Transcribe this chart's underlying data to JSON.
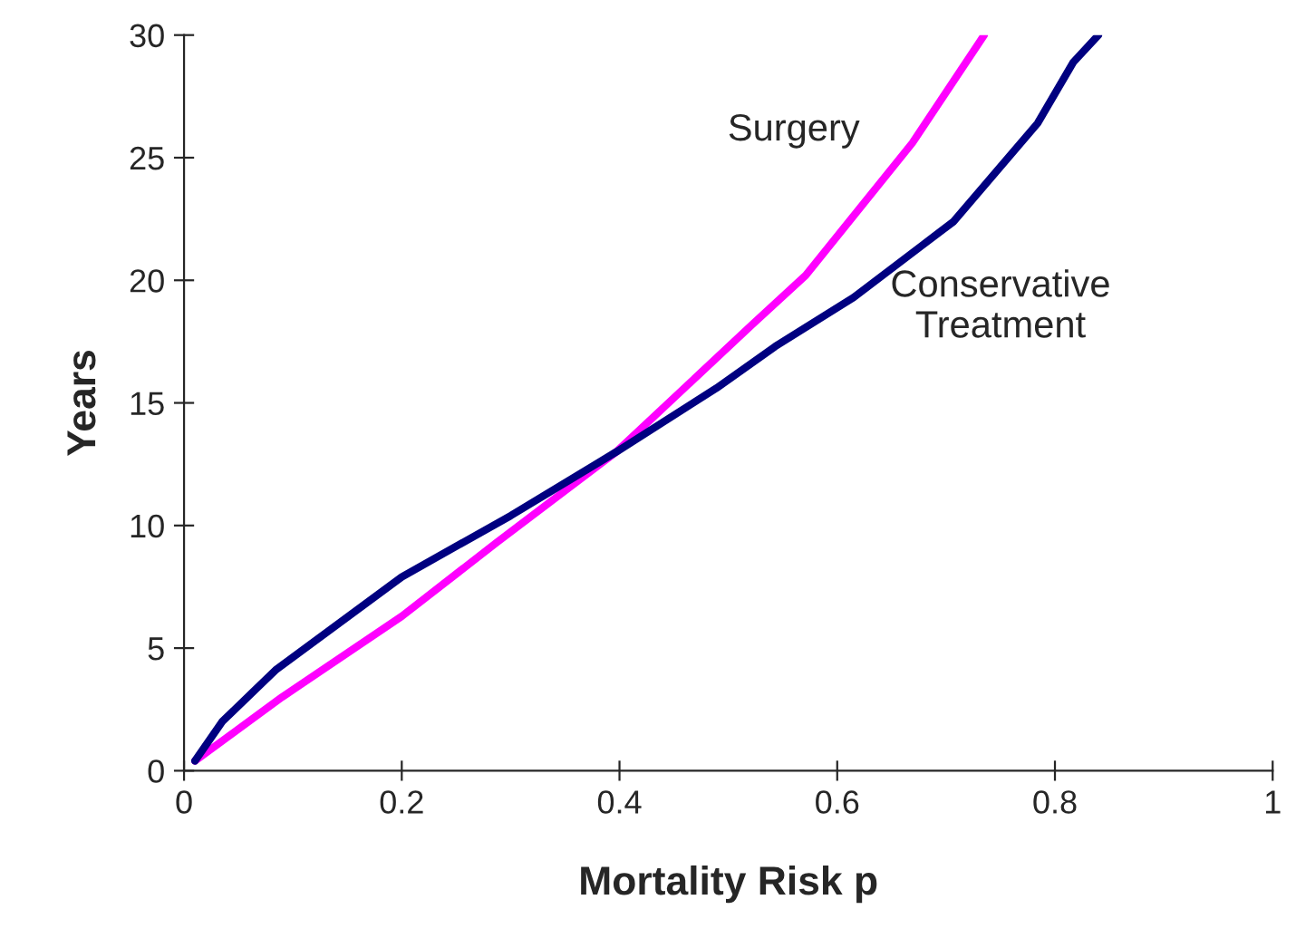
{
  "chart_data": {
    "type": "line",
    "xlabel": "Mortality Risk p",
    "ylabel": "Years",
    "xlim": [
      0,
      1
    ],
    "ylim": [
      0,
      30
    ],
    "xticks": [
      0,
      0.2,
      0.4,
      0.6,
      0.8,
      1
    ],
    "yticks": [
      0,
      5,
      10,
      15,
      20,
      25,
      30
    ],
    "grid": false,
    "marker": "none",
    "line_style": "solid",
    "series": [
      {
        "name": "Surgery",
        "color": "#ff00ff",
        "x": [
          0.01,
          0.09,
          0.2,
          0.287,
          0.397,
          0.522,
          0.571,
          0.669,
          0.735
        ],
        "values": [
          0.4,
          3.0,
          6.3,
          9.3,
          13.0,
          18.2,
          20.2,
          25.6,
          30
        ]
      },
      {
        "name": "Conservative\nTreatment",
        "color": "#000080",
        "x": [
          0.01,
          0.035,
          0.084,
          0.2,
          0.3,
          0.397,
          0.489,
          0.543,
          0.615,
          0.707,
          0.784,
          0.817,
          0.84
        ],
        "values": [
          0.4,
          2.0,
          4.1,
          7.9,
          10.4,
          13.0,
          15.6,
          17.3,
          19.3,
          22.4,
          26.4,
          28.9,
          30
        ]
      }
    ]
  }
}
